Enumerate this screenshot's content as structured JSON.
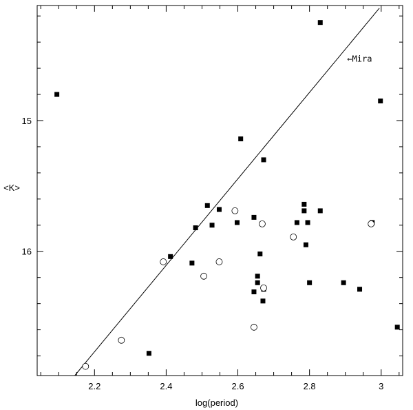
{
  "chart_data": {
    "type": "scatter",
    "title": "",
    "xlabel": "log(period)",
    "ylabel": "<K>",
    "xlim": [
      2.04,
      3.06
    ],
    "ylim": [
      16.95,
      14.12
    ],
    "y_inverted": true,
    "grid": false,
    "x_ticks": [
      2.2,
      2.4,
      2.6,
      2.8,
      3.0
    ],
    "x_tick_labels": [
      "2.2",
      "2.4",
      "2.6",
      "2.8",
      "3"
    ],
    "y_ticks": [
      15,
      16
    ],
    "y_tick_labels": [
      "15",
      "16"
    ],
    "x_minor_step": 0.05,
    "y_minor_step": 0.2,
    "series": [
      {
        "marker": "filled-square",
        "color": "#000000",
        "points": [
          [
            2.095,
            14.8
          ],
          [
            2.83,
            14.25
          ],
          [
            2.998,
            14.85
          ],
          [
            2.608,
            15.14
          ],
          [
            2.672,
            15.3
          ],
          [
            2.515,
            15.65
          ],
          [
            2.548,
            15.68
          ],
          [
            2.482,
            15.82
          ],
          [
            2.528,
            15.8
          ],
          [
            2.598,
            15.78
          ],
          [
            2.645,
            15.74
          ],
          [
            2.785,
            15.64
          ],
          [
            2.785,
            15.69
          ],
          [
            2.83,
            15.69
          ],
          [
            2.765,
            15.78
          ],
          [
            2.795,
            15.78
          ],
          [
            2.975,
            15.78
          ],
          [
            2.79,
            15.95
          ],
          [
            2.662,
            16.02
          ],
          [
            2.412,
            16.04
          ],
          [
            2.472,
            16.09
          ],
          [
            2.655,
            16.19
          ],
          [
            2.655,
            16.24
          ],
          [
            2.8,
            16.24
          ],
          [
            2.895,
            16.24
          ],
          [
            2.645,
            16.31
          ],
          [
            2.672,
            16.29
          ],
          [
            2.94,
            16.29
          ],
          [
            2.67,
            16.38
          ],
          [
            3.045,
            16.58
          ],
          [
            2.352,
            16.78
          ]
        ]
      },
      {
        "marker": "open-circle",
        "color": "#000000",
        "points": [
          [
            2.592,
            15.69
          ],
          [
            2.668,
            15.79
          ],
          [
            2.972,
            15.79
          ],
          [
            2.755,
            15.89
          ],
          [
            2.392,
            16.08
          ],
          [
            2.548,
            16.08
          ],
          [
            2.505,
            16.19
          ],
          [
            2.672,
            16.28
          ],
          [
            2.645,
            16.58
          ],
          [
            2.275,
            16.68
          ],
          [
            2.175,
            16.88
          ]
        ]
      }
    ],
    "reference_line": {
      "label": "Mira",
      "points": [
        [
          2.145,
          16.95
        ],
        [
          2.995,
          14.14
        ]
      ]
    },
    "annotations": [
      {
        "text": "←Mira",
        "x": 2.905,
        "y": 14.55
      }
    ]
  }
}
